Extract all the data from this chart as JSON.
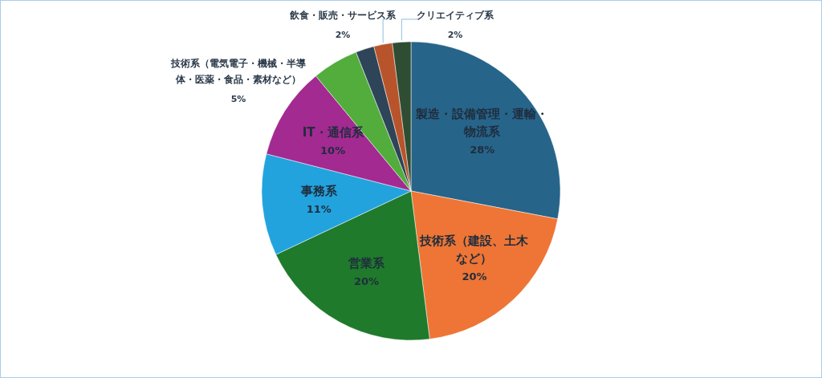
{
  "chart_data": {
    "type": "pie",
    "categories": [
      "製造・設備管理・運輸・物流系",
      "技術系（建設、土木など）",
      "営業系",
      "事務系",
      "IT・通信系",
      "技術系（電気電子・機械・半導体・医薬・食品・素材など）",
      null,
      "飲食・販売・サービス系",
      "クリエイティブ系"
    ],
    "values": [
      28,
      20,
      20,
      11,
      10,
      5,
      2,
      2,
      2
    ],
    "colors": [
      "#27648a",
      "#ee7535",
      "#1f7a2b",
      "#22a3de",
      "#a22a90",
      "#52ad3c",
      "#2d4459",
      "#b8542b",
      "#2f4d32"
    ],
    "value_labels": [
      "28%",
      "20%",
      "20%",
      "11%",
      "10%",
      "5%",
      null,
      "2%",
      "2%"
    ]
  }
}
